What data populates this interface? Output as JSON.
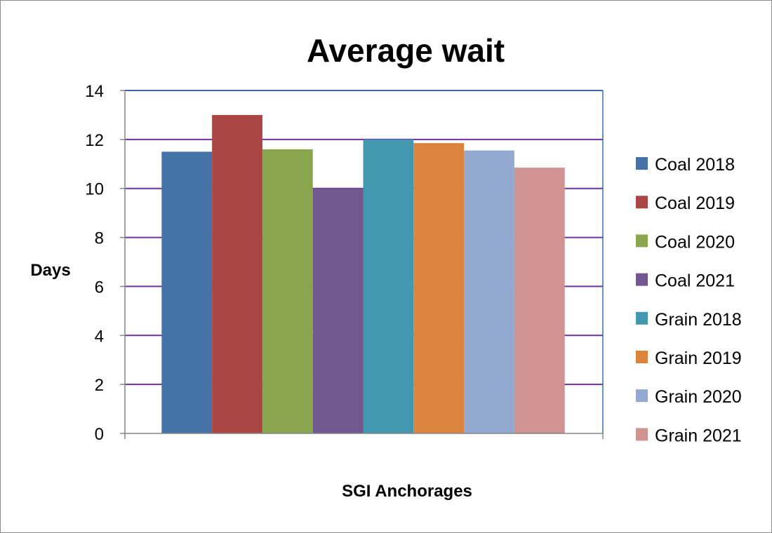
{
  "chart_data": {
    "type": "bar",
    "title": "Average wait",
    "xlabel": "SGI Anchorages",
    "ylabel": "Days",
    "ylim": [
      0,
      14
    ],
    "yticks": [
      0,
      2,
      4,
      6,
      8,
      10,
      12,
      14
    ],
    "grid": true,
    "legend_position": "right",
    "series": [
      {
        "name": "Coal 2018",
        "value": 11.5,
        "color": "#4572A7"
      },
      {
        "name": "Coal 2019",
        "value": 13.0,
        "color": "#AA4643"
      },
      {
        "name": "Coal 2020",
        "value": 11.6,
        "color": "#89A54E"
      },
      {
        "name": "Coal 2021",
        "value": 10.0,
        "color": "#71588F"
      },
      {
        "name": "Grain 2018",
        "value": 12.0,
        "color": "#4198AF"
      },
      {
        "name": "Grain 2019",
        "value": 11.85,
        "color": "#DB843D"
      },
      {
        "name": "Grain 2020",
        "value": 11.55,
        "color": "#93A9CF"
      },
      {
        "name": "Grain 2021",
        "value": 10.85,
        "color": "#D19392"
      }
    ],
    "colors": {
      "gridline": "#7030A0",
      "plot_border": "#2E75B6"
    }
  }
}
